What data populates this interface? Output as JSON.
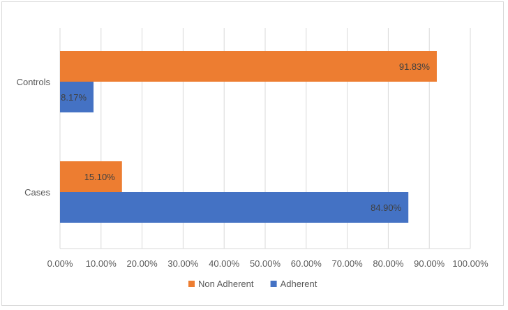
{
  "chart_data": {
    "type": "bar",
    "orientation": "horizontal",
    "categories": [
      "Controls",
      "Cases"
    ],
    "series": [
      {
        "name": "Non Adherent",
        "color": "#ED7D31",
        "values": [
          91.83,
          15.1
        ],
        "labels": [
          "91.83%",
          "15.10%"
        ]
      },
      {
        "name": "Adherent",
        "color": "#4472C4",
        "values": [
          8.17,
          84.9
        ],
        "labels": [
          "8.17%",
          "84.90%"
        ]
      }
    ],
    "xlim": [
      0,
      100
    ],
    "xticks": [
      0,
      10,
      20,
      30,
      40,
      50,
      60,
      70,
      80,
      90,
      100
    ],
    "xtick_labels": [
      "0.00%",
      "10.00%",
      "20.00%",
      "30.00%",
      "40.00%",
      "50.00%",
      "60.00%",
      "70.00%",
      "80.00%",
      "90.00%",
      "100.00%"
    ],
    "grid": true,
    "legend_position": "bottom",
    "title": "",
    "xlabel": "",
    "ylabel": ""
  }
}
